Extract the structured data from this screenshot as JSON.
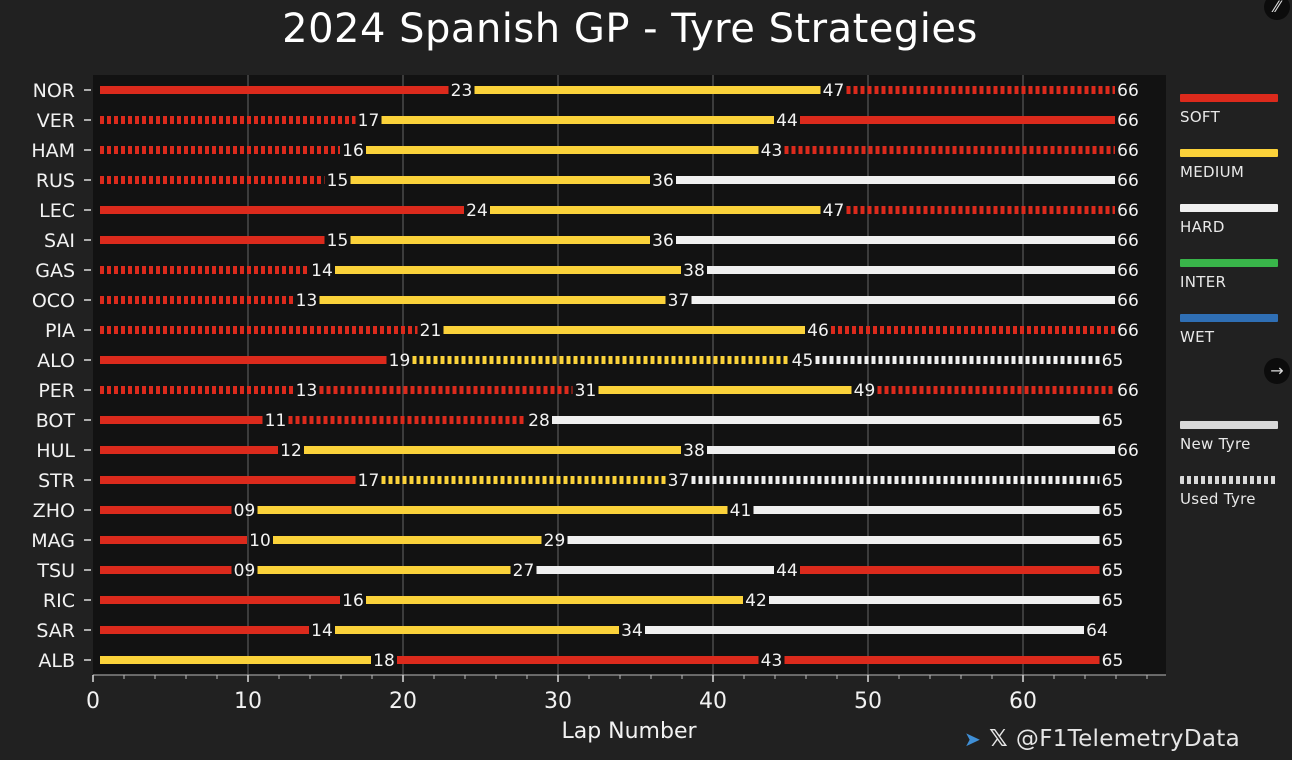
{
  "chart_data": {
    "type": "bar",
    "title": "2024 Spanish GP - Tyre Strategies",
    "xlabel": "Lap Number",
    "ylabel": "",
    "xlim": [
      0,
      69
    ],
    "xticks": [
      0,
      10,
      20,
      30,
      40,
      50,
      60
    ],
    "grid": true,
    "legend_position": "right",
    "compound_colors": {
      "SOFT": "#dc2a1c",
      "MEDIUM": "#fbd23a",
      "HARD": "#f0f0f0",
      "INTER": "#39b54a",
      "WET": "#2f6fb5"
    },
    "legend": {
      "compounds": [
        "SOFT",
        "MEDIUM",
        "HARD",
        "INTER",
        "WET"
      ],
      "new_label": "New Tyre",
      "used_label": "Used Tyre"
    },
    "drivers": [
      {
        "code": "NOR",
        "stints": [
          {
            "c": "SOFT",
            "end": 23,
            "used": false,
            "label": "23"
          },
          {
            "c": "MEDIUM",
            "end": 47,
            "used": false,
            "label": "47"
          },
          {
            "c": "SOFT",
            "end": 66,
            "used": true,
            "label": "66"
          }
        ]
      },
      {
        "code": "VER",
        "stints": [
          {
            "c": "SOFT",
            "end": 17,
            "used": true,
            "label": "17"
          },
          {
            "c": "MEDIUM",
            "end": 44,
            "used": false,
            "label": "44"
          },
          {
            "c": "SOFT",
            "end": 66,
            "used": false,
            "label": "66"
          }
        ]
      },
      {
        "code": "HAM",
        "stints": [
          {
            "c": "SOFT",
            "end": 16,
            "used": true,
            "label": "16"
          },
          {
            "c": "MEDIUM",
            "end": 43,
            "used": false,
            "label": "43"
          },
          {
            "c": "SOFT",
            "end": 66,
            "used": true,
            "label": "66"
          }
        ]
      },
      {
        "code": "RUS",
        "stints": [
          {
            "c": "SOFT",
            "end": 15,
            "used": true,
            "label": "15"
          },
          {
            "c": "MEDIUM",
            "end": 36,
            "used": false,
            "label": "36"
          },
          {
            "c": "HARD",
            "end": 66,
            "used": false,
            "label": "66"
          }
        ]
      },
      {
        "code": "LEC",
        "stints": [
          {
            "c": "SOFT",
            "end": 24,
            "used": false,
            "label": "24"
          },
          {
            "c": "MEDIUM",
            "end": 47,
            "used": false,
            "label": "47"
          },
          {
            "c": "SOFT",
            "end": 66,
            "used": true,
            "label": "66"
          }
        ]
      },
      {
        "code": "SAI",
        "stints": [
          {
            "c": "SOFT",
            "end": 15,
            "used": false,
            "label": "15"
          },
          {
            "c": "MEDIUM",
            "end": 36,
            "used": false,
            "label": "36"
          },
          {
            "c": "HARD",
            "end": 66,
            "used": false,
            "label": "66"
          }
        ]
      },
      {
        "code": "GAS",
        "stints": [
          {
            "c": "SOFT",
            "end": 14,
            "used": true,
            "label": "14"
          },
          {
            "c": "MEDIUM",
            "end": 38,
            "used": false,
            "label": "38"
          },
          {
            "c": "HARD",
            "end": 66,
            "used": false,
            "label": "66"
          }
        ]
      },
      {
        "code": "OCO",
        "stints": [
          {
            "c": "SOFT",
            "end": 13,
            "used": true,
            "label": "13"
          },
          {
            "c": "MEDIUM",
            "end": 37,
            "used": false,
            "label": "37"
          },
          {
            "c": "HARD",
            "end": 66,
            "used": false,
            "label": "66"
          }
        ]
      },
      {
        "code": "PIA",
        "stints": [
          {
            "c": "SOFT",
            "end": 21,
            "used": true,
            "label": "21"
          },
          {
            "c": "MEDIUM",
            "end": 46,
            "used": false,
            "label": "46"
          },
          {
            "c": "SOFT",
            "end": 66,
            "used": true,
            "label": "66"
          }
        ]
      },
      {
        "code": "ALO",
        "stints": [
          {
            "c": "SOFT",
            "end": 19,
            "used": false,
            "label": "19"
          },
          {
            "c": "MEDIUM",
            "end": 45,
            "used": true,
            "label": "45"
          },
          {
            "c": "HARD",
            "end": 65,
            "used": true,
            "label": "65"
          }
        ]
      },
      {
        "code": "PER",
        "stints": [
          {
            "c": "SOFT",
            "end": 13,
            "used": true,
            "label": "13"
          },
          {
            "c": "SOFT",
            "end": 31,
            "used": true,
            "label": "31"
          },
          {
            "c": "MEDIUM",
            "end": 49,
            "used": false,
            "label": "49"
          },
          {
            "c": "SOFT",
            "end": 66,
            "used": true,
            "label": "66"
          }
        ]
      },
      {
        "code": "BOT",
        "stints": [
          {
            "c": "SOFT",
            "end": 11,
            "used": false,
            "label": "11"
          },
          {
            "c": "SOFT",
            "end": 28,
            "used": true,
            "label": "28"
          },
          {
            "c": "HARD",
            "end": 65,
            "used": false,
            "label": "65"
          }
        ]
      },
      {
        "code": "HUL",
        "stints": [
          {
            "c": "SOFT",
            "end": 12,
            "used": false,
            "label": "12"
          },
          {
            "c": "MEDIUM",
            "end": 38,
            "used": false,
            "label": "38"
          },
          {
            "c": "HARD",
            "end": 66,
            "used": false,
            "label": "66"
          }
        ]
      },
      {
        "code": "STR",
        "stints": [
          {
            "c": "SOFT",
            "end": 17,
            "used": false,
            "label": "17"
          },
          {
            "c": "MEDIUM",
            "end": 37,
            "used": true,
            "label": "37"
          },
          {
            "c": "HARD",
            "end": 65,
            "used": true,
            "label": "65"
          }
        ]
      },
      {
        "code": "ZHO",
        "stints": [
          {
            "c": "SOFT",
            "end": 9,
            "used": false,
            "label": "09"
          },
          {
            "c": "MEDIUM",
            "end": 41,
            "used": false,
            "label": "41"
          },
          {
            "c": "HARD",
            "end": 65,
            "used": false,
            "label": "65"
          }
        ]
      },
      {
        "code": "MAG",
        "stints": [
          {
            "c": "SOFT",
            "end": 10,
            "used": false,
            "label": "10"
          },
          {
            "c": "MEDIUM",
            "end": 29,
            "used": false,
            "label": "29"
          },
          {
            "c": "HARD",
            "end": 65,
            "used": false,
            "label": "65"
          }
        ]
      },
      {
        "code": "TSU",
        "stints": [
          {
            "c": "SOFT",
            "end": 9,
            "used": false,
            "label": "09"
          },
          {
            "c": "MEDIUM",
            "end": 27,
            "used": false,
            "label": "27"
          },
          {
            "c": "HARD",
            "end": 44,
            "used": false,
            "label": "44"
          },
          {
            "c": "SOFT",
            "end": 65,
            "used": false,
            "label": "65"
          }
        ]
      },
      {
        "code": "RIC",
        "stints": [
          {
            "c": "SOFT",
            "end": 16,
            "used": false,
            "label": "16"
          },
          {
            "c": "MEDIUM",
            "end": 42,
            "used": false,
            "label": "42"
          },
          {
            "c": "HARD",
            "end": 65,
            "used": false,
            "label": "65"
          }
        ]
      },
      {
        "code": "SAR",
        "stints": [
          {
            "c": "SOFT",
            "end": 14,
            "used": false,
            "label": "14"
          },
          {
            "c": "MEDIUM",
            "end": 34,
            "used": false,
            "label": "34"
          },
          {
            "c": "HARD",
            "end": 64,
            "used": false,
            "label": "64"
          }
        ]
      },
      {
        "code": "ALB",
        "stints": [
          {
            "c": "MEDIUM",
            "end": 18,
            "used": false,
            "label": "18"
          },
          {
            "c": "SOFT",
            "end": 43,
            "used": false,
            "label": "43"
          },
          {
            "c": "SOFT",
            "end": 65,
            "used": false,
            "label": "65"
          }
        ]
      }
    ]
  },
  "credit": {
    "telegram_icon": "telegram-icon",
    "x_icon": "x-logo-icon",
    "x_glyph": "𝕏",
    "handle": "@F1TelemetryData"
  },
  "controls": {
    "expand_icon": "expand-icon",
    "next_icon": "arrow-right-icon"
  }
}
